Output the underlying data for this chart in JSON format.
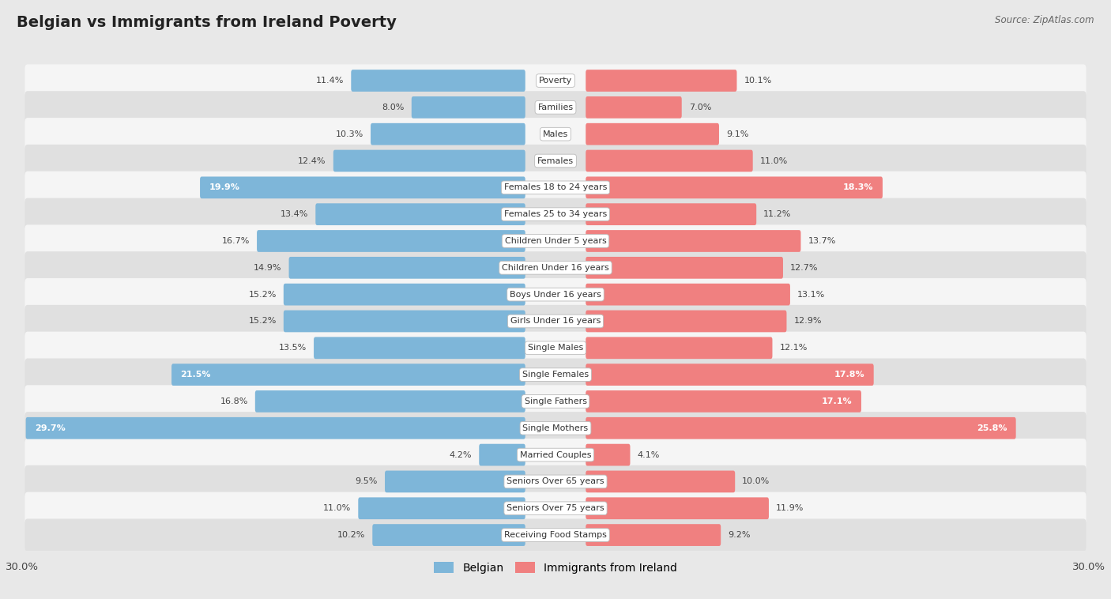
{
  "title": "Belgian vs Immigrants from Ireland Poverty",
  "source": "Source: ZipAtlas.com",
  "categories": [
    "Poverty",
    "Families",
    "Males",
    "Females",
    "Females 18 to 24 years",
    "Females 25 to 34 years",
    "Children Under 5 years",
    "Children Under 16 years",
    "Boys Under 16 years",
    "Girls Under 16 years",
    "Single Males",
    "Single Females",
    "Single Fathers",
    "Single Mothers",
    "Married Couples",
    "Seniors Over 65 years",
    "Seniors Over 75 years",
    "Receiving Food Stamps"
  ],
  "belgian": [
    11.4,
    8.0,
    10.3,
    12.4,
    19.9,
    13.4,
    16.7,
    14.9,
    15.2,
    15.2,
    13.5,
    21.5,
    16.8,
    29.7,
    4.2,
    9.5,
    11.0,
    10.2
  ],
  "ireland": [
    10.1,
    7.0,
    9.1,
    11.0,
    18.3,
    11.2,
    13.7,
    12.7,
    13.1,
    12.9,
    12.1,
    17.8,
    17.1,
    25.8,
    4.1,
    10.0,
    11.9,
    9.2
  ],
  "belgian_color": "#7eb6d9",
  "ireland_color": "#f08080",
  "belgian_label": "Belgian",
  "ireland_label": "Immigrants from Ireland",
  "max_val": 30.0,
  "row_colors": [
    "#ffffff",
    "#e8e8e8"
  ]
}
